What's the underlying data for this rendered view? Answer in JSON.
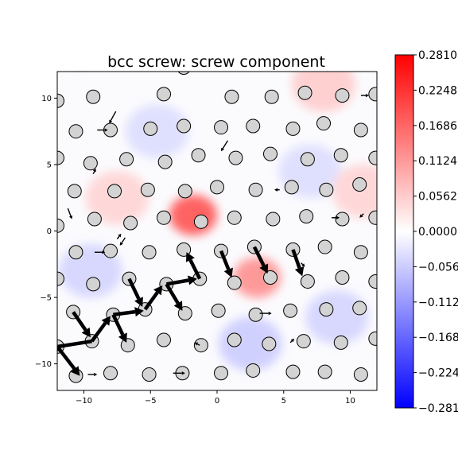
{
  "chart_data": {
    "type": "quiver",
    "title": "bcc screw: screw component",
    "xlabel": "",
    "ylabel": "",
    "xlim": [
      -12,
      12
    ],
    "ylim": [
      -12,
      12
    ],
    "xticks": [
      -10,
      -5,
      0,
      5,
      10
    ],
    "yticks": [
      -10,
      -5,
      0,
      5,
      10
    ],
    "colorbar": {
      "min": -0.281,
      "max": 0.281,
      "ticks": [
        0.281,
        0.2248,
        0.1686,
        0.1124,
        0.0562,
        0.0,
        -0.0562,
        -0.1124,
        -0.1686,
        -0.2248,
        -0.281
      ],
      "tick_labels": [
        "0.2810",
        "0.2248",
        "0.1686",
        "0.1124",
        "0.0562",
        "0.0000",
        "−0.056",
        "−0.112",
        "−0.168",
        "−0.224",
        "−0.281"
      ],
      "colormap": "bwr",
      "colors": {
        "low": "#0000ff",
        "mid": "#ffffff",
        "high": "#ff0000"
      }
    },
    "field_blobs": [
      {
        "x": -1.8,
        "y": 1.2,
        "value": 0.2
      },
      {
        "x": 3.0,
        "y": -3.5,
        "value": 0.13
      },
      {
        "x": 8.0,
        "y": 11.0,
        "value": 0.06
      },
      {
        "x": -9.5,
        "y": -3.0,
        "value": -0.05
      },
      {
        "x": 7.0,
        "y": 4.5,
        "value": -0.04
      },
      {
        "x": 2.5,
        "y": -8.5,
        "value": -0.06
      },
      {
        "x": 9.0,
        "y": -6.5,
        "value": -0.05
      },
      {
        "x": -7.5,
        "y": 2.5,
        "value": 0.05
      },
      {
        "x": -4.5,
        "y": 7.5,
        "value": -0.04
      },
      {
        "x": 11.0,
        "y": 3.0,
        "value": 0.05
      }
    ],
    "atoms": [
      [
        -10.3,
        12.5
      ],
      [
        -7.6,
        12.7
      ],
      [
        -2.5,
        12.3
      ],
      [
        2.8,
        12.6
      ],
      [
        8.3,
        12.5
      ],
      [
        -12.0,
        9.8
      ],
      [
        -9.3,
        10.1
      ],
      [
        -4.0,
        10.3
      ],
      [
        1.1,
        10.1
      ],
      [
        4.1,
        10.1
      ],
      [
        6.6,
        10.4
      ],
      [
        9.4,
        10.2
      ],
      [
        11.9,
        10.3
      ],
      [
        -10.6,
        7.5
      ],
      [
        -8.0,
        7.6
      ],
      [
        -5.0,
        7.7
      ],
      [
        -2.5,
        7.9
      ],
      [
        0.3,
        7.8
      ],
      [
        2.7,
        7.9
      ],
      [
        5.7,
        7.7
      ],
      [
        8.0,
        8.1
      ],
      [
        10.8,
        7.6
      ],
      [
        -12.0,
        5.5
      ],
      [
        -9.5,
        5.1
      ],
      [
        -6.8,
        5.4
      ],
      [
        -3.9,
        5.2
      ],
      [
        -1.4,
        5.7
      ],
      [
        1.4,
        5.5
      ],
      [
        4.0,
        5.8
      ],
      [
        6.8,
        5.4
      ],
      [
        9.3,
        5.7
      ],
      [
        11.9,
        5.5
      ],
      [
        -10.7,
        3.0
      ],
      [
        -7.7,
        3.0
      ],
      [
        -5.2,
        3.1
      ],
      [
        -2.4,
        3.0
      ],
      [
        0.0,
        3.3
      ],
      [
        2.9,
        3.1
      ],
      [
        5.6,
        3.3
      ],
      [
        8.2,
        3.1
      ],
      [
        10.7,
        3.5
      ],
      [
        -12.0,
        0.4
      ],
      [
        -9.2,
        0.9
      ],
      [
        -6.5,
        0.6
      ],
      [
        -4.0,
        1.0
      ],
      [
        -1.2,
        0.7
      ],
      [
        1.3,
        1.0
      ],
      [
        4.2,
        0.9
      ],
      [
        6.7,
        1.1
      ],
      [
        9.4,
        0.9
      ],
      [
        11.9,
        1.0
      ],
      [
        -10.6,
        -1.6
      ],
      [
        -8.0,
        -1.5
      ],
      [
        -5.1,
        -1.6
      ],
      [
        -2.5,
        -1.4
      ],
      [
        0.3,
        -1.5
      ],
      [
        2.8,
        -1.2
      ],
      [
        5.7,
        -1.4
      ],
      [
        8.1,
        -1.2
      ],
      [
        10.8,
        -1.6
      ],
      [
        -12.0,
        -3.6
      ],
      [
        -9.3,
        -4.0
      ],
      [
        -6.6,
        -3.6
      ],
      [
        -3.8,
        -4.0
      ],
      [
        -1.3,
        -3.6
      ],
      [
        1.3,
        -3.9
      ],
      [
        4.0,
        -3.5
      ],
      [
        6.8,
        -3.8
      ],
      [
        9.4,
        -3.5
      ],
      [
        11.9,
        -3.8
      ],
      [
        -10.8,
        -6.1
      ],
      [
        -7.8,
        -6.3
      ],
      [
        -5.4,
        -5.9
      ],
      [
        -2.4,
        -6.2
      ],
      [
        0.1,
        -6.0
      ],
      [
        2.9,
        -6.3
      ],
      [
        5.5,
        -6.0
      ],
      [
        8.2,
        -5.9
      ],
      [
        10.7,
        -5.8
      ],
      [
        -12.0,
        -8.7
      ],
      [
        -9.4,
        -8.3
      ],
      [
        -6.7,
        -8.6
      ],
      [
        -4.0,
        -8.2
      ],
      [
        -1.2,
        -8.6
      ],
      [
        1.3,
        -8.2
      ],
      [
        3.9,
        -8.5
      ],
      [
        6.5,
        -8.3
      ],
      [
        9.3,
        -8.4
      ],
      [
        11.9,
        -8.1
      ],
      [
        -10.6,
        -10.9
      ],
      [
        -8.0,
        -10.7
      ],
      [
        -5.1,
        -10.8
      ],
      [
        -2.6,
        -10.7
      ],
      [
        0.3,
        -10.7
      ],
      [
        2.7,
        -10.5
      ],
      [
        5.7,
        -10.6
      ],
      [
        8.1,
        -10.6
      ],
      [
        10.8,
        -10.8
      ]
    ],
    "large_arrows": [
      {
        "x": -10.8,
        "y": -6.1,
        "u": 1.3,
        "v": -1.9
      },
      {
        "x": -12.0,
        "y": -8.7,
        "u": 1.7,
        "v": -2.2
      },
      {
        "x": -9.4,
        "y": -8.3,
        "u": -3.2,
        "v": -0.5
      },
      {
        "x": -9.4,
        "y": -8.3,
        "u": 1.4,
        "v": 1.9
      },
      {
        "x": -7.8,
        "y": -6.3,
        "u": 1.0,
        "v": -2.1
      },
      {
        "x": -7.8,
        "y": -6.3,
        "u": 2.3,
        "v": 0.3
      },
      {
        "x": -6.6,
        "y": -3.6,
        "u": 1.0,
        "v": -2.1
      },
      {
        "x": -5.4,
        "y": -5.9,
        "u": 1.3,
        "v": 1.8
      },
      {
        "x": -3.8,
        "y": -4.0,
        "u": 1.2,
        "v": -2.0
      },
      {
        "x": -3.8,
        "y": -4.0,
        "u": 2.3,
        "v": 0.4
      },
      {
        "x": -1.3,
        "y": -3.6,
        "u": -1.0,
        "v": 2.0
      },
      {
        "x": 0.3,
        "y": -1.5,
        "u": 0.8,
        "v": -2.0
      },
      {
        "x": 2.8,
        "y": -1.2,
        "u": 1.0,
        "v": -2.0
      },
      {
        "x": 5.7,
        "y": -1.4,
        "u": 0.7,
        "v": -2.0
      }
    ],
    "small_arrows": [
      {
        "x": -7.6,
        "y": 9.0,
        "u": -0.5,
        "v": -0.9
      },
      {
        "x": -9.0,
        "y": 7.6,
        "u": 0.8,
        "v": 0.0
      },
      {
        "x": 0.8,
        "y": 6.8,
        "u": -0.5,
        "v": -0.8
      },
      {
        "x": 8.6,
        "y": 1.0,
        "u": 0.6,
        "v": 0.0
      },
      {
        "x": -11.2,
        "y": 1.7,
        "u": 0.3,
        "v": -0.8
      },
      {
        "x": -6.9,
        "y": -0.5,
        "u": -0.4,
        "v": -0.6
      },
      {
        "x": -9.2,
        "y": -1.6,
        "u": 0.8,
        "v": 0.0
      },
      {
        "x": 3.2,
        "y": -6.2,
        "u": 0.9,
        "v": 0.0
      },
      {
        "x": -3.3,
        "y": -10.7,
        "u": 0.9,
        "v": 0.0
      },
      {
        "x": -9.7,
        "y": -10.8,
        "u": 0.7,
        "v": 0.0
      },
      {
        "x": -7.5,
        "y": -0.6,
        "u": 0.3,
        "v": 0.4
      },
      {
        "x": 10.8,
        "y": 10.2,
        "u": 0.6,
        "v": 0.0
      },
      {
        "x": -9.3,
        "y": 4.3,
        "u": 0.2,
        "v": 0.4
      },
      {
        "x": 4.7,
        "y": 3.1,
        "u": -0.4,
        "v": 0.0
      },
      {
        "x": 11.0,
        "y": 1.3,
        "u": -0.3,
        "v": -0.3
      },
      {
        "x": 6.3,
        "y": -2.4,
        "u": 0.3,
        "v": -0.3
      },
      {
        "x": -1.3,
        "y": -8.6,
        "u": -0.4,
        "v": 0.2
      },
      {
        "x": 5.5,
        "y": -8.4,
        "u": 0.3,
        "v": 0.3
      }
    ]
  }
}
